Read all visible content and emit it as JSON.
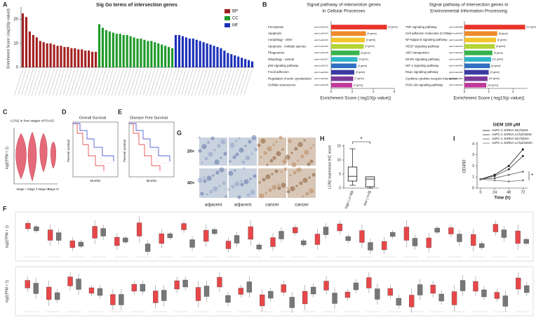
{
  "panel_labels": [
    "A",
    "B",
    "C",
    "D",
    "E",
    "F",
    "G",
    "H",
    "I"
  ],
  "chart_data": [
    {
      "type": "bar",
      "title": "Sig Go terms of intersection genes",
      "ylabel": "Enrichment Score (-log10(p value))",
      "ylim": [
        0,
        24
      ],
      "yticks": [
        0,
        10,
        20
      ],
      "legend": "top-right",
      "series": [
        {
          "name": "BP",
          "color": "#a32020",
          "values": [
            22.5,
            21,
            15,
            13.5,
            12.5,
            11,
            10.5,
            10,
            10,
            9.5,
            9,
            9,
            8.5,
            8.5,
            8,
            8,
            7.5,
            7.5,
            7,
            7,
            6.5,
            6.5
          ]
        },
        {
          "name": "CC",
          "color": "#1f9a2a",
          "values": [
            18,
            16.5,
            15.5,
            15,
            14.5,
            14,
            14,
            13.5,
            13.5,
            13,
            12.5,
            12,
            12,
            11.5,
            11,
            11,
            10.5,
            10,
            9.5,
            9,
            8.5,
            8
          ]
        },
        {
          "name": "MF",
          "color": "#1c30b8",
          "values": [
            13.5,
            13.5,
            13,
            12.5,
            12,
            12,
            11.5,
            11,
            10.5,
            10,
            9.5,
            9,
            8.5,
            8,
            7,
            6,
            5.5,
            5,
            4.5,
            4,
            3.5,
            3,
            2.5
          ]
        }
      ]
    },
    {
      "type": "hbar",
      "title": [
        "Signal pathway of  intersection genes",
        "in Cellular Processes"
      ],
      "categories": [
        "Ferroptosis",
        "Apoptosis",
        "Autophagy - other",
        "Apoptosis - multiple species",
        "Phagosome",
        "Mitophagy - animal",
        "p53 signaling pathway",
        "Focal adhesion",
        "Regulation of actin cytoskeleton",
        "Cellular senescence"
      ],
      "ids": [
        "path:hsa04216",
        "path:hsa04210",
        "path:hsa04136",
        "path:hsa04215",
        "path:hsa04145",
        "path:hsa04137",
        "path:hsa04115",
        "path:hsa04510",
        "path:hsa04810",
        "path:hsa04218"
      ],
      "counts": [
        "[6 gene]",
        "[5 gene]",
        "[3 gene]",
        "[3 gene]",
        "[5 gene]",
        "[4 gene]",
        "[3 gene]",
        "[5 gene]",
        "[7 gene]",
        "[4 gene]"
      ],
      "values": [
        5.3,
        3.3,
        3.2,
        3.1,
        2.7,
        2.5,
        2.4,
        2.2,
        2.1,
        2.0
      ],
      "colors": [
        "#e8342a",
        "#f08a2c",
        "#f5c32c",
        "#b5d334",
        "#37b34a",
        "#2fb4c8",
        "#2f6fbf",
        "#3a3aa3",
        "#7a3a9a",
        "#c0399a"
      ],
      "xlim": [
        0,
        6
      ],
      "xticks": [
        0,
        2,
        4,
        6
      ],
      "xlabel": "Enrichment Score (-log10(p value))"
    },
    {
      "type": "hbar",
      "title": [
        "Signal pathway of  intersection genes in",
        "Environmental Information Processing"
      ],
      "categories": [
        "TNF signaling pathway",
        "Cell adhesion molecules (CAMs)",
        "NF-kappa B signaling pathway",
        "VEGF signaling pathway",
        "ABC transporters",
        "MAPK signaling pathway",
        "HIF-1 signaling pathway",
        "Rap1 signaling pathway",
        "Cytokine-cytokine receptor interaction",
        "PI3K-Akt signaling pathway"
      ],
      "ids": [
        "path:hsa04668",
        "path:hsa04514",
        "path:hsa04064",
        "path:hsa04370",
        "path:hsa02010",
        "path:hsa04010",
        "path:hsa04066",
        "path:hsa04015",
        "path:hsa04060",
        "path:hsa04151"
      ],
      "counts": [
        "[11 gene]",
        "[8 gene]",
        "[6 gene]",
        "[5 gene]",
        "[4 gene]",
        "[12 gene]",
        "[6 gene]",
        "[9 gene]",
        "[10 gene]",
        "[10 gene]"
      ],
      "values": [
        5.0,
        2.7,
        2.6,
        2.5,
        2.3,
        2.2,
        2.1,
        2.0,
        1.9,
        1.8
      ],
      "colors": [
        "#e8342a",
        "#f08a2c",
        "#f5c32c",
        "#b5d334",
        "#37b34a",
        "#2fb4c8",
        "#2f6fbf",
        "#3a3aa3",
        "#7a3a9a",
        "#c0399a"
      ],
      "xlim": [
        0,
        5.2
      ],
      "xticks": [
        0,
        2,
        4
      ],
      "xlabel": "Enrichment Score (-log10(p value))"
    },
    {
      "type": "box",
      "categories": [
        "high ( n=38)",
        "low ( n=8)"
      ],
      "ylabel": "LCN2 expression IHC score",
      "ylim": [
        0,
        15
      ],
      "yticks": [
        0,
        5,
        10,
        15
      ],
      "annotation": "*",
      "boxes": [
        {
          "min": 1,
          "q1": 2.5,
          "median": 4.2,
          "q3": 7.5,
          "max": 14
        },
        {
          "min": 0,
          "q1": 0.5,
          "median": 3.2,
          "q3": 4,
          "max": 4
        }
      ]
    },
    {
      "type": "line",
      "title": "GEM 100 μM",
      "xlabel": "Time (h)",
      "ylabel": "OD450",
      "x": [
        0,
        24,
        48,
        72
      ],
      "xlim": [
        -6,
        80
      ],
      "xticks": [
        0,
        24,
        48,
        72
      ],
      "ylim": [
        0,
        4
      ],
      "yticks": [
        0,
        1,
        2,
        3,
        4
      ],
      "annotation": "*",
      "series": [
        {
          "name": "AsPC-1 shRNA NC/GEM-",
          "color": "#111111",
          "values": [
            0.8,
            1.2,
            2.0,
            3.5
          ]
        },
        {
          "name": "AsPC-1 shRNA LCN2/GEM-",
          "color": "#333333",
          "values": [
            0.8,
            1.1,
            1.7,
            2.9
          ]
        },
        {
          "name": "AsPC-1 shRNA NC/GEM+",
          "color": "#555555",
          "values": [
            0.8,
            0.9,
            1.2,
            1.5
          ]
        },
        {
          "name": "AsPC-1 shRNA LCN2/GEM+",
          "color": "#777777",
          "values": [
            0.8,
            0.7,
            0.6,
            0.7
          ]
        }
      ]
    }
  ],
  "panels": {
    "C": {
      "title": "LCN2 in four stages of PAAD",
      "ylabel": "log2(TPM + 1)",
      "categories": [
        "Stage I",
        "Stage II",
        "Stage III",
        "Stage IV"
      ]
    },
    "D": {
      "title": "Overall Survival",
      "xlabel": "Months",
      "ylabel": "Percent survival"
    },
    "E": {
      "title": "Disease Free Survival",
      "xlabel": "Months",
      "ylabel": "Percent survival"
    },
    "F": {
      "ylabel": "log2(TPM + 1)"
    },
    "G": {
      "row_labels": [
        "20×",
        "40×"
      ],
      "column_labels": [
        "adjacent",
        "adjacent",
        "cancer",
        "cancer"
      ]
    }
  }
}
